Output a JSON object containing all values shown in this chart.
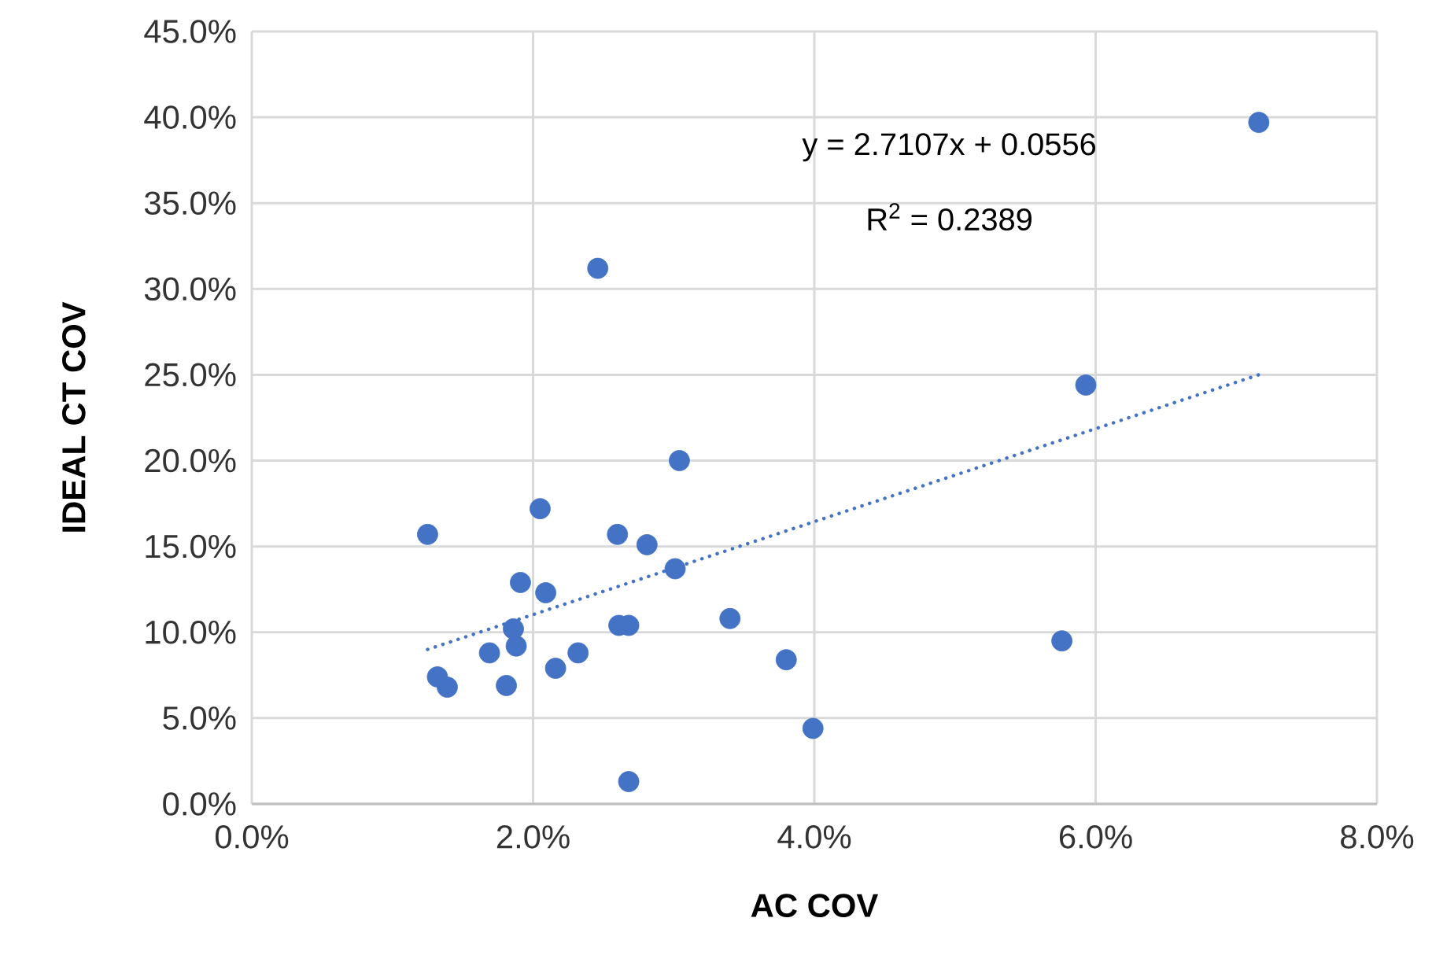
{
  "chart_data": {
    "type": "scatter",
    "xlabel": "AC COV",
    "ylabel": "IDEAL CT COV",
    "series": [
      {
        "color": "#4472c4",
        "marker": "circle",
        "x": [
          1.25,
          1.32,
          1.39,
          1.69,
          1.81,
          1.86,
          1.88,
          1.91,
          2.05,
          2.09,
          2.16,
          2.32,
          2.46,
          2.6,
          2.61,
          2.68,
          2.68,
          2.81,
          3.01,
          3.04,
          3.4,
          3.8,
          3.99,
          5.76,
          5.93,
          7.16
        ],
        "values": [
          15.7,
          7.4,
          6.8,
          8.8,
          6.9,
          10.2,
          9.2,
          12.9,
          17.2,
          12.3,
          7.9,
          8.8,
          31.2,
          15.7,
          10.4,
          10.4,
          1.3,
          15.1,
          13.7,
          20.0,
          10.8,
          8.4,
          4.4,
          9.5,
          24.4,
          39.7
        ]
      },
      {
        "type": "line",
        "color": "#4472c4",
        "line_style": "dotted",
        "marker": "none",
        "x": [
          1.25,
          7.16
        ],
        "values": [
          9.0,
          25.0
        ]
      }
    ],
    "annotations": [
      "y = 2.7107x + 0.0556",
      "R$^{2}$ = 0.2389"
    ],
    "xlim": [
      0,
      8
    ],
    "ylim": [
      0,
      45
    ],
    "xticks": [
      {
        "value": 0,
        "label": "0.0%"
      },
      {
        "value": 2,
        "label": "2.0%"
      },
      {
        "value": 4,
        "label": "4.0%"
      },
      {
        "value": 6,
        "label": "6.0%"
      },
      {
        "value": 8,
        "label": "8.0%"
      }
    ],
    "yticks": [
      {
        "value": 0,
        "label": "0.0%"
      },
      {
        "value": 5,
        "label": "5.0%"
      },
      {
        "value": 10,
        "label": "10.0%"
      },
      {
        "value": 15,
        "label": "15.0%"
      },
      {
        "value": 20,
        "label": "20.0%"
      },
      {
        "value": 25,
        "label": "25.0%"
      },
      {
        "value": 30,
        "label": "30.0%"
      },
      {
        "value": 35,
        "label": "35.0%"
      },
      {
        "value": 40,
        "label": "40.0%"
      },
      {
        "value": 45,
        "label": "45.0%"
      }
    ],
    "grid": true
  }
}
